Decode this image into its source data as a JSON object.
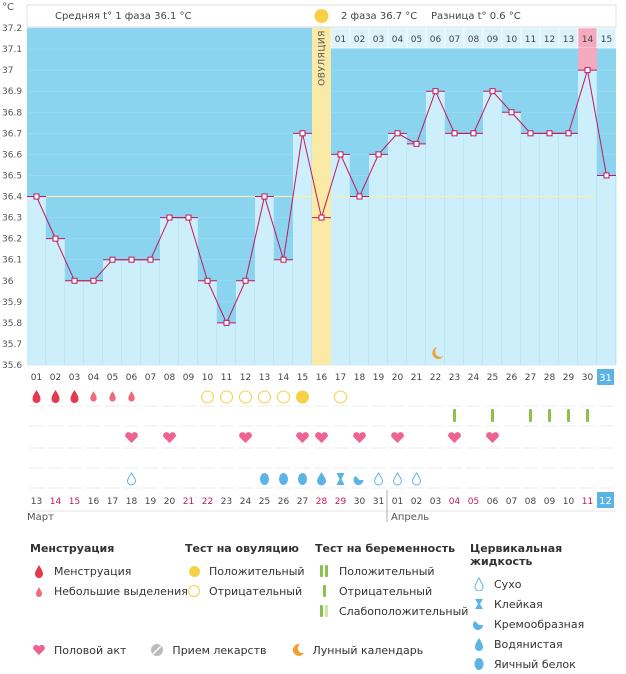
{
  "chart_data": {
    "type": "line",
    "title_unit": "°C",
    "summary": {
      "phase1_label": "Средняя t° 1 фаза",
      "phase1_value": "36.1 °C",
      "phase2_label": "2 фаза",
      "phase2_value": "36.7 °C",
      "diff_label": "Разница t°",
      "diff_value": "0.6 °C"
    },
    "ovulation_label": "ОВУЛЯЦИЯ",
    "ylim": [
      35.6,
      37.2
    ],
    "yticks": [
      "37.2",
      "37.1",
      "37",
      "36.9",
      "36.8",
      "36.7",
      "36.6",
      "36.5",
      "36.4",
      "36.3",
      "36.2",
      "36.1",
      "36",
      "35.9",
      "35.8",
      "35.7",
      "35.6"
    ],
    "cycle_days": [
      "01",
      "02",
      "03",
      "04",
      "05",
      "06",
      "07",
      "08",
      "09",
      "10",
      "11",
      "12",
      "13",
      "14",
      "15",
      "16",
      "17",
      "18",
      "19",
      "20",
      "21",
      "22",
      "23",
      "24",
      "25",
      "26",
      "27",
      "28",
      "29",
      "30",
      "31"
    ],
    "temperatures": [
      36.4,
      36.2,
      36.0,
      36.0,
      36.1,
      36.1,
      36.1,
      36.3,
      36.3,
      36.0,
      35.8,
      36.0,
      36.4,
      36.1,
      36.7,
      36.3,
      36.6,
      36.4,
      36.6,
      36.7,
      36.65,
      36.9,
      36.7,
      36.7,
      36.9,
      36.8,
      36.7,
      36.7,
      36.7,
      37.0,
      36.5
    ],
    "coverline": 36.4,
    "ovulation_day": 16,
    "phase2_top_days": [
      "01",
      "02",
      "03",
      "04",
      "05",
      "06",
      "07",
      "08",
      "09",
      "10",
      "11",
      "12",
      "13",
      "14",
      "15"
    ],
    "phase2_highlight_day": "14",
    "moon_day": 22,
    "dates": [
      "13",
      "14",
      "15",
      "16",
      "17",
      "18",
      "19",
      "20",
      "21",
      "22",
      "23",
      "24",
      "25",
      "26",
      "27",
      "28",
      "29",
      "30",
      "31",
      "01",
      "02",
      "03",
      "04",
      "05",
      "06",
      "07",
      "08",
      "09",
      "10",
      "11",
      "12"
    ],
    "red_dates": [
      "14",
      "15",
      "21",
      "22",
      "28",
      "29",
      "04",
      "05",
      "11"
    ],
    "red_date_idx": [
      1,
      2,
      8,
      9,
      15,
      16,
      22,
      23,
      29
    ],
    "month1": "Март",
    "month2": "Апрель",
    "last_day_box": "31",
    "last_date_box": "12",
    "menstruation": [
      [
        "big",
        1
      ],
      [
        "big",
        2
      ],
      [
        "big",
        3
      ],
      [
        "small",
        4
      ],
      [
        "small",
        5
      ],
      [
        "small",
        6
      ]
    ],
    "ovulation_tests": [
      [
        "neg",
        10
      ],
      [
        "neg",
        11
      ],
      [
        "neg",
        12
      ],
      [
        "neg",
        13
      ],
      [
        "neg",
        14
      ],
      [
        "pos",
        15
      ],
      [
        "neg",
        17
      ]
    ],
    "pregnancy_tests": [
      23,
      25,
      27,
      28,
      29,
      30
    ],
    "intercourse": [
      6,
      8,
      12,
      15,
      16,
      18,
      20,
      23,
      25
    ],
    "fluid": [
      [
        "dry",
        6
      ],
      [
        "egg",
        13
      ],
      [
        "egg",
        14
      ],
      [
        "egg",
        15
      ],
      [
        "water",
        16
      ],
      [
        "sticky",
        17
      ],
      [
        "cream",
        18
      ],
      [
        "dry",
        19
      ],
      [
        "dry",
        20
      ],
      [
        "dry",
        21
      ]
    ],
    "colors": {
      "sky": "#8ad4f0",
      "bar": "#cdeefb",
      "line": "#c2185b",
      "ovul": "#fbe9a6",
      "pink": "#f3a9be",
      "red": "#e53950",
      "gold": "#f6d146",
      "green": "#8bc34a",
      "blue": "#5bb3e6"
    }
  },
  "legend": {
    "menstruation": {
      "title": "Менструация",
      "items": [
        "Менструация",
        "Небольшие выделения"
      ]
    },
    "ovulation_test": {
      "title": "Тест на овуляцию",
      "items": [
        "Положительный",
        "Отрицательный"
      ]
    },
    "pregnancy_test": {
      "title": "Тест на беременность",
      "items": [
        "Положительный",
        "Отрицательный",
        "Слабоположительный"
      ]
    },
    "cervical": {
      "title": "Цервикальная жидкость",
      "items": [
        "Сухо",
        "Клейкая",
        "Кремообразная",
        "Водянистая",
        "Яичный белок"
      ]
    },
    "bottom": [
      "Половой акт",
      "Прием лекарств",
      "Лунный календарь"
    ]
  }
}
